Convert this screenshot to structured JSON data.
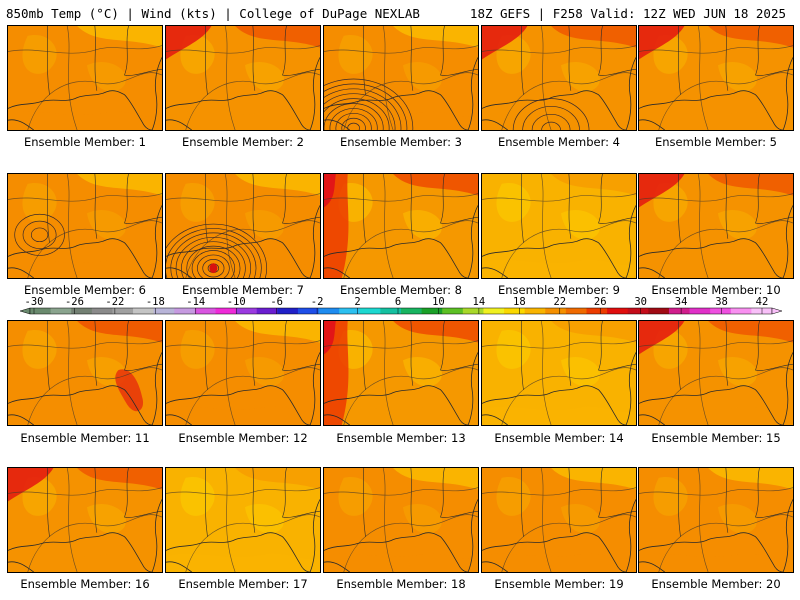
{
  "header": {
    "left": "850mb Temp (°C) | Wind (kts) | College of DuPage NEXLAB",
    "right": "18Z GEFS | F258 Valid: 12Z WED JUN 18 2025"
  },
  "members": [
    {
      "label": "Ensemble Member: 1",
      "style": "orange",
      "low": false
    },
    {
      "label": "Ensemble Member: 2",
      "style": "red-nw",
      "low": false
    },
    {
      "label": "Ensemble Member: 3",
      "style": "orange",
      "low": true,
      "low_level": "strong-partial"
    },
    {
      "label": "Ensemble Member: 4",
      "style": "red-nw",
      "low": true,
      "low_level": "weak-partial"
    },
    {
      "label": "Ensemble Member: 5",
      "style": "red-nw",
      "low": false
    },
    {
      "label": "Ensemble Member: 6",
      "style": "orange",
      "low": true,
      "low_level": "weak"
    },
    {
      "label": "Ensemble Member: 7",
      "style": "orange",
      "low": true,
      "low_level": "strong"
    },
    {
      "label": "Ensemble Member: 8",
      "style": "red-w",
      "low": false
    },
    {
      "label": "Ensemble Member: 9",
      "style": "yellow",
      "low": false
    },
    {
      "label": "Ensemble Member: 10",
      "style": "red-nw",
      "low": false
    },
    {
      "label": "Ensemble Member: 11",
      "style": "red-fl",
      "low": false
    },
    {
      "label": "Ensemble Member: 12",
      "style": "orange",
      "low": false
    },
    {
      "label": "Ensemble Member: 13",
      "style": "red-w",
      "low": false
    },
    {
      "label": "Ensemble Member: 14",
      "style": "yellow",
      "low": false
    },
    {
      "label": "Ensemble Member: 15",
      "style": "red-nw",
      "low": false
    },
    {
      "label": "Ensemble Member: 16",
      "style": "red-nw",
      "low": false
    },
    {
      "label": "Ensemble Member: 17",
      "style": "yellow",
      "low": false
    },
    {
      "label": "Ensemble Member: 18",
      "style": "orange",
      "low": false
    },
    {
      "label": "Ensemble Member: 19",
      "style": "orange",
      "low": false
    },
    {
      "label": "Ensemble Member: 20",
      "style": "orange",
      "low": false
    }
  ],
  "colorbar": {
    "labels": [
      "-30",
      "-26",
      "-22",
      "-18",
      "-14",
      "-10",
      "-6",
      "-2",
      "2",
      "6",
      "10",
      "14",
      "18",
      "22",
      "26",
      "30",
      "34",
      "38",
      "42"
    ],
    "colors": [
      "#6a8a6e",
      "#8aa48e",
      "#738073",
      "#8a8a8a",
      "#a0a0a0",
      "#c4c4c4",
      "#b8b4d8",
      "#c69ae0",
      "#d855e0",
      "#ee2ad8",
      "#9a3ae0",
      "#6a1ed0",
      "#2020c8",
      "#1e4ee8",
      "#1e8cf0",
      "#2cc0f0",
      "#1cd8d0",
      "#14c0a0",
      "#18b460",
      "#1aa028",
      "#5cc024",
      "#a8d82a",
      "#f0f020",
      "#fad800",
      "#f9b400",
      "#f59000",
      "#f06a00",
      "#ec3c00",
      "#e00e0e",
      "#c40c1a",
      "#a00a14",
      "#d01e8c",
      "#e030c8",
      "#ee50e0",
      "#f890f0",
      "#f8c0f8"
    ]
  }
}
